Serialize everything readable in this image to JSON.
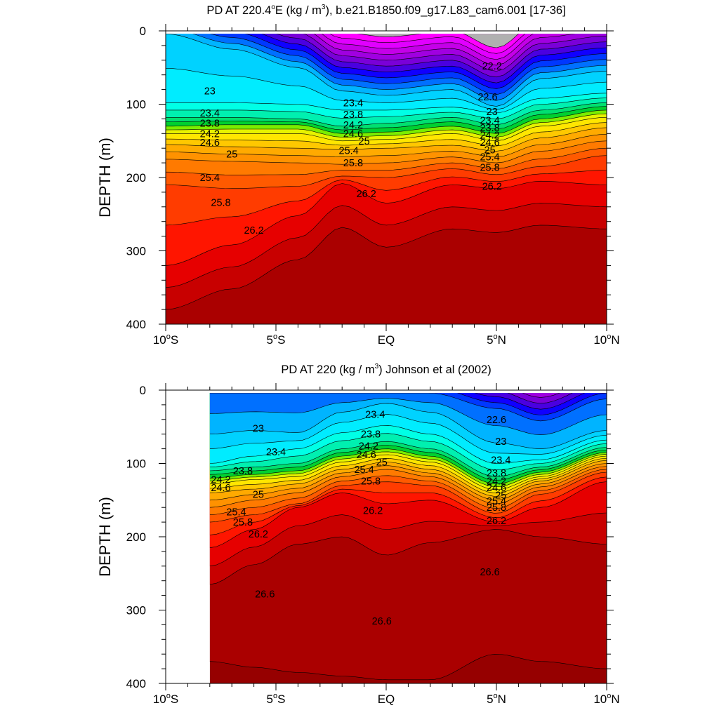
{
  "chart_data": [
    {
      "type": "filled-contour",
      "title": "PD AT 220.4°E (kg / m³), b.e21.B1850.f09_g17.L83_cam6.001 [17-36]",
      "title_parts": {
        "pre": "PD AT 220.4",
        "deg": "o",
        "mid": "E (kg / m",
        "sup": "3",
        "post": "), b.e21.B1850.f09_g17.L83_cam6.001 [17-36]"
      },
      "xlabel": "",
      "ylabel": "DEPTH (m)",
      "xlim": [
        -10,
        10
      ],
      "ylim": [
        400,
        0
      ],
      "x_ticks": [
        {
          "value": -10,
          "num": "10",
          "deg": "o",
          "hemi": "S"
        },
        {
          "value": -5,
          "num": "5",
          "deg": "o",
          "hemi": "S"
        },
        {
          "value": 0,
          "num": "EQ",
          "deg": "",
          "hemi": ""
        },
        {
          "value": 5,
          "num": "5",
          "deg": "o",
          "hemi": "N"
        },
        {
          "value": 10,
          "num": "10",
          "deg": "o",
          "hemi": "N"
        }
      ],
      "y_ticks": [
        0,
        100,
        200,
        300,
        400
      ],
      "data_x_range": [
        -10,
        10
      ],
      "contour_levels": [
        21.0,
        21.2,
        21.4,
        21.6,
        21.8,
        22.0,
        22.2,
        22.4,
        22.6,
        22.8,
        23.0,
        23.2,
        23.4,
        23.6,
        23.8,
        24.0,
        24.2,
        24.4,
        24.6,
        24.8,
        25.0,
        25.2,
        25.4,
        25.6,
        25.8,
        26.0,
        26.2,
        26.4,
        26.6
      ],
      "profile_x": [
        -10,
        -7,
        -4,
        -2,
        0,
        3,
        5,
        7,
        10
      ],
      "profile_depth_of_level": {
        "23.0": [
          4,
          25,
          50,
          82,
          88,
          80,
          103,
          65,
          55
        ],
        "23.4": [
          98,
          98,
          100,
          108,
          108,
          104,
          112,
          92,
          85
        ],
        "23.8": [
          118,
          118,
          120,
          130,
          126,
          118,
          128,
          108,
          98
        ],
        "24.2": [
          130,
          128,
          128,
          140,
          138,
          130,
          140,
          120,
          108
        ],
        "24.6": [
          140,
          140,
          140,
          150,
          148,
          140,
          150,
          130,
          118
        ],
        "25.0": [
          155,
          158,
          160,
          162,
          160,
          156,
          164,
          146,
          132
        ],
        "25.4": [
          175,
          178,
          180,
          182,
          180,
          172,
          180,
          164,
          150
        ],
        "25.8": [
          210,
          215,
          212,
          198,
          200,
          188,
          196,
          185,
          170
        ],
        "26.2": [
          320,
          292,
          252,
          208,
          235,
          210,
          215,
          205,
          210
        ]
      },
      "labeled_levels": [
        {
          "x": -8,
          "depth": 82,
          "value": "23"
        },
        {
          "x": -8,
          "depth": 112,
          "value": "23.4"
        },
        {
          "x": -8,
          "depth": 126,
          "value": "23.8"
        },
        {
          "x": -8,
          "depth": 140,
          "value": "24.2"
        },
        {
          "x": -8,
          "depth": 152,
          "value": "24.6"
        },
        {
          "x": -7,
          "depth": 168,
          "value": "25"
        },
        {
          "x": -8,
          "depth": 200,
          "value": "25.4"
        },
        {
          "x": -7.5,
          "depth": 234,
          "value": "25.8"
        },
        {
          "x": -6,
          "depth": 272,
          "value": "26.2"
        },
        {
          "x": -1.5,
          "depth": 98,
          "value": "23.4"
        },
        {
          "x": -1.5,
          "depth": 114,
          "value": "23.8"
        },
        {
          "x": -1.5,
          "depth": 128,
          "value": "24.2"
        },
        {
          "x": -1.5,
          "depth": 140,
          "value": "24.6"
        },
        {
          "x": -1,
          "depth": 150,
          "value": "25"
        },
        {
          "x": -1.7,
          "depth": 163,
          "value": "25.4"
        },
        {
          "x": -1.5,
          "depth": 180,
          "value": "25.8"
        },
        {
          "x": -0.9,
          "depth": 222,
          "value": "26.2"
        },
        {
          "x": 4.8,
          "depth": 48,
          "value": "22.2"
        },
        {
          "x": 4.6,
          "depth": 90,
          "value": "22.6"
        },
        {
          "x": 4.8,
          "depth": 110,
          "value": "23"
        },
        {
          "x": 4.7,
          "depth": 122,
          "value": "23.4"
        },
        {
          "x": 4.7,
          "depth": 132,
          "value": "23.8"
        },
        {
          "x": 4.7,
          "depth": 142,
          "value": "24.2"
        },
        {
          "x": 4.7,
          "depth": 152,
          "value": "24.6"
        },
        {
          "x": 4.7,
          "depth": 162,
          "value": "25"
        },
        {
          "x": 4.7,
          "depth": 172,
          "value": "25.4"
        },
        {
          "x": 4.7,
          "depth": 186,
          "value": "25.8"
        },
        {
          "x": 4.8,
          "depth": 212,
          "value": "26.2"
        }
      ]
    },
    {
      "type": "filled-contour",
      "title": "PD AT 220 (kg / m³) Johnson et al (2002)",
      "title_parts": {
        "pre": "PD AT 220",
        "deg": "",
        "mid": " (kg / m",
        "sup": "3",
        "post": ") Johnson et al (2002)"
      },
      "xlabel": "",
      "ylabel": "DEPTH (m)",
      "xlim": [
        -10,
        10
      ],
      "ylim": [
        400,
        0
      ],
      "x_ticks": [
        {
          "value": -10,
          "num": "10",
          "deg": "o",
          "hemi": "S"
        },
        {
          "value": -5,
          "num": "5",
          "deg": "o",
          "hemi": "S"
        },
        {
          "value": 0,
          "num": "EQ",
          "deg": "",
          "hemi": ""
        },
        {
          "value": 5,
          "num": "5",
          "deg": "o",
          "hemi": "N"
        },
        {
          "value": 10,
          "num": "10",
          "deg": "o",
          "hemi": "N"
        }
      ],
      "y_ticks": [
        0,
        100,
        200,
        300,
        400
      ],
      "data_x_range": [
        -8,
        10
      ],
      "contour_levels": [
        21.0,
        21.2,
        21.4,
        21.6,
        21.8,
        22.0,
        22.2,
        22.4,
        22.6,
        22.8,
        23.0,
        23.2,
        23.4,
        23.6,
        23.8,
        24.0,
        24.2,
        24.4,
        24.6,
        24.8,
        25.0,
        25.2,
        25.4,
        25.6,
        25.8,
        26.0,
        26.2,
        26.4,
        26.6,
        26.8
      ],
      "profile_x": [
        -8,
        -6,
        -4,
        -2,
        0,
        2,
        5,
        7,
        10
      ],
      "profile_depth_of_level": {
        "22.6": [
          4,
          4,
          4,
          4,
          4,
          4,
          25,
          42,
          12
        ],
        "23.0": [
          60,
          55,
          58,
          30,
          18,
          30,
          72,
          80,
          55
        ],
        "23.4": [
          100,
          90,
          80,
          58,
          48,
          60,
          100,
          95,
          68
        ],
        "23.8": [
          110,
          105,
          100,
          80,
          70,
          80,
          118,
          105,
          78
        ],
        "24.2": [
          120,
          115,
          110,
          90,
          80,
          90,
          128,
          112,
          85
        ],
        "24.6": [
          128,
          122,
          118,
          98,
          88,
          98,
          136,
          118,
          90
        ],
        "25.0": [
          140,
          135,
          128,
          108,
          98,
          108,
          145,
          124,
          96
        ],
        "25.4": [
          160,
          150,
          140,
          118,
          108,
          118,
          155,
          132,
          104
        ],
        "25.8": [
          180,
          170,
          155,
          130,
          125,
          130,
          168,
          142,
          112
        ],
        "26.2": [
          215,
          190,
          160,
          140,
          155,
          150,
          180,
          160,
          125
        ],
        "26.6": [
          265,
          238,
          210,
          200,
          225,
          208,
          190,
          200,
          210
        ],
        "26.8": [
          370,
          378,
          385,
          390,
          395,
          395,
          360,
          370,
          380
        ]
      },
      "labeled_levels": [
        {
          "x": -5.8,
          "depth": 52,
          "value": "23"
        },
        {
          "x": -5,
          "depth": 84,
          "value": "23.4"
        },
        {
          "x": -6.5,
          "depth": 110,
          "value": "23.8"
        },
        {
          "x": -7.5,
          "depth": 122,
          "value": "24.2"
        },
        {
          "x": -7.5,
          "depth": 133,
          "value": "24.6"
        },
        {
          "x": -5.8,
          "depth": 142,
          "value": "25"
        },
        {
          "x": -6.8,
          "depth": 166,
          "value": "25.4"
        },
        {
          "x": -6.5,
          "depth": 180,
          "value": "25.8"
        },
        {
          "x": -5.8,
          "depth": 196,
          "value": "26.2"
        },
        {
          "x": -5.5,
          "depth": 278,
          "value": "26.6"
        },
        {
          "x": -0.5,
          "depth": 33,
          "value": "23.4"
        },
        {
          "x": -0.7,
          "depth": 60,
          "value": "23.8"
        },
        {
          "x": -0.8,
          "depth": 76,
          "value": "24.2"
        },
        {
          "x": -0.9,
          "depth": 88,
          "value": "24.6"
        },
        {
          "x": -0.2,
          "depth": 98,
          "value": "25"
        },
        {
          "x": -1,
          "depth": 108,
          "value": "25.4"
        },
        {
          "x": -0.7,
          "depth": 124,
          "value": "25.8"
        },
        {
          "x": -0.6,
          "depth": 164,
          "value": "26.2"
        },
        {
          "x": -0.2,
          "depth": 315,
          "value": "26.6"
        },
        {
          "x": 5,
          "depth": 40,
          "value": "22.6"
        },
        {
          "x": 5.2,
          "depth": 70,
          "value": "23"
        },
        {
          "x": 5.2,
          "depth": 95,
          "value": "23.4"
        },
        {
          "x": 5,
          "depth": 113,
          "value": "23.8"
        },
        {
          "x": 5,
          "depth": 124,
          "value": "24.2"
        },
        {
          "x": 5,
          "depth": 133,
          "value": "24.6"
        },
        {
          "x": 5.2,
          "depth": 143,
          "value": "25"
        },
        {
          "x": 5,
          "depth": 151,
          "value": "25.4"
        },
        {
          "x": 5,
          "depth": 160,
          "value": "25.8"
        },
        {
          "x": 5,
          "depth": 178,
          "value": "26.2"
        },
        {
          "x": 4.7,
          "depth": 248,
          "value": "26.6"
        }
      ]
    }
  ]
}
